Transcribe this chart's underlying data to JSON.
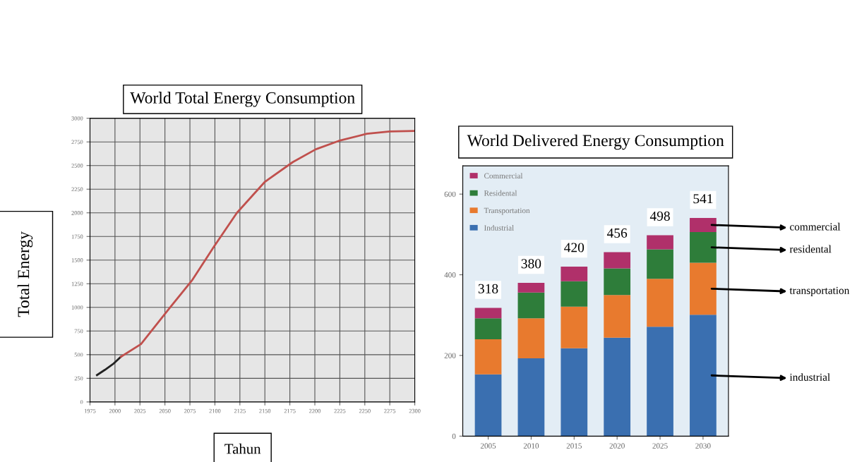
{
  "chart_data": [
    {
      "type": "line",
      "title": "World Total Energy Consumption",
      "xlabel": "Tahun",
      "ylabel": "Total Energy",
      "series": [
        {
          "color": "#222222",
          "x": [
            1982,
            1990,
            1998,
            2006
          ],
          "values": [
            284,
            340,
            400,
            478
          ]
        },
        {
          "color": "#c0504d",
          "x": [
            2006,
            2026,
            2054,
            2077,
            2099,
            2122,
            2150,
            2178,
            2201,
            2224,
            2252,
            2275,
            2300
          ],
          "values": [
            478,
            612,
            985,
            1284,
            1642,
            2000,
            2328,
            2537,
            2672,
            2761,
            2836,
            2860,
            2866
          ]
        }
      ],
      "xlim": [
        1975,
        2300
      ],
      "xticks": [
        1975,
        2000,
        2025,
        2050,
        2075,
        2100,
        2125,
        2150,
        2175,
        2200,
        2225,
        2250,
        2275,
        2300
      ],
      "ylim": [
        0,
        3000
      ],
      "yticks": [
        0,
        250,
        500,
        750,
        1000,
        1250,
        1500,
        1750,
        2000,
        2250,
        2500,
        2750,
        3000
      ],
      "grid": true
    },
    {
      "type": "bar",
      "stacked": true,
      "title": "World Delivered Energy Consumption",
      "categories": [
        "2005",
        "2010",
        "2015",
        "2020",
        "2025",
        "2030"
      ],
      "series": [
        {
          "name": "Industrial",
          "color": "#3a6fb0",
          "values": [
            153,
            193,
            218,
            244,
            271,
            301
          ]
        },
        {
          "name": "Transportation",
          "color": "#e87a2e",
          "values": [
            87,
            99,
            103,
            106,
            119,
            129
          ]
        },
        {
          "name": "Residental",
          "color": "#2e7d3a",
          "values": [
            52,
            64,
            63,
            66,
            73,
            76
          ]
        },
        {
          "name": "Commercial",
          "color": "#b0306a",
          "values": [
            26,
            24,
            36,
            40,
            35,
            35
          ]
        }
      ],
      "totals": [
        "318",
        "380",
        "420",
        "456",
        "498",
        "541"
      ],
      "ylim": [
        0,
        670
      ],
      "yticks": [
        0,
        200,
        400,
        600
      ],
      "legend": "top left",
      "grid": false,
      "annotations": [
        "commercial",
        "residental",
        "transportation",
        "industrial"
      ]
    }
  ]
}
